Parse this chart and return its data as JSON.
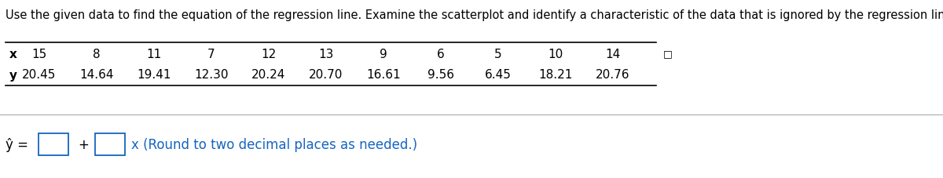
{
  "title": "Use the given data to find the equation of the regression line. Examine the scatterplot and identify a characteristic of the data that is ignored by the regression line.",
  "x_label": "x",
  "y_label": "y",
  "x_values": [
    15,
    8,
    11,
    7,
    12,
    13,
    9,
    6,
    5,
    10,
    14
  ],
  "y_values": [
    20.45,
    14.64,
    19.41,
    12.3,
    20.24,
    20.7,
    16.61,
    9.56,
    6.45,
    18.21,
    20.76
  ],
  "equation_hat": "ŷ =",
  "equation_suffix": "x (Round to two decimal places as needed.)",
  "plus_sign": "+",
  "background_color": "#ffffff",
  "title_fontsize": 10.5,
  "table_fontsize": 11,
  "eq_fontsize": 12,
  "text_color": "#000000",
  "blue_color": "#1565c0",
  "table_line_color": "#000000",
  "separator_line_color": "#aaaaaa",
  "fig_width": 12.0,
  "fig_height": 2.28,
  "dpi": 100
}
